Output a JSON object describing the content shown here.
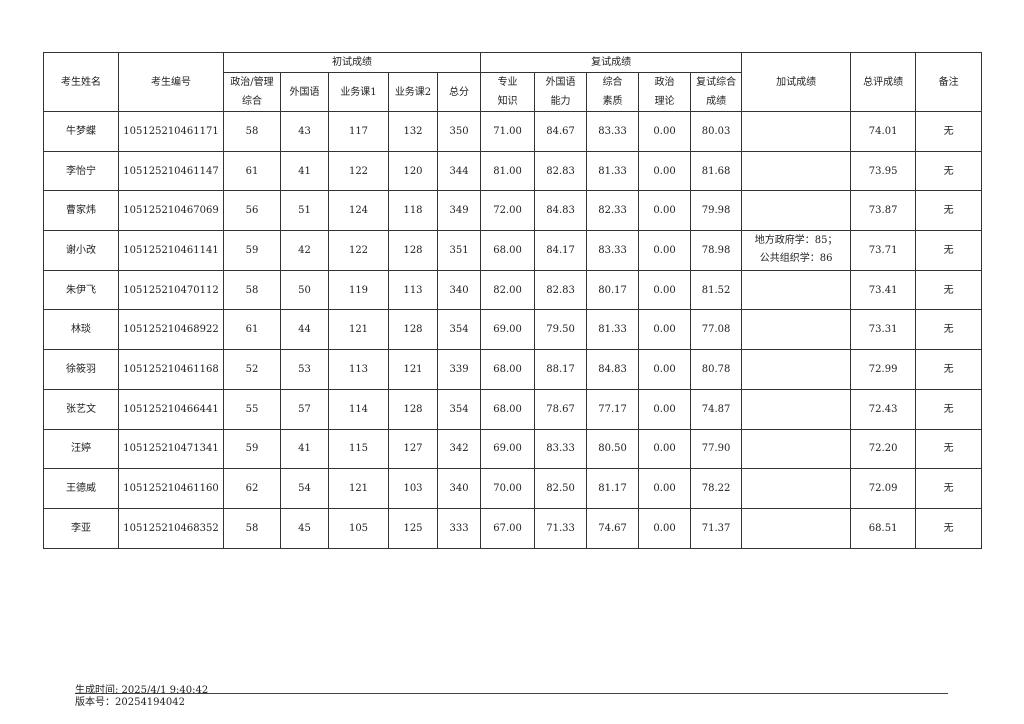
{
  "table": {
    "headers": {
      "name": "考生姓名",
      "id": "考生编号",
      "prelim_group": "初试成绩",
      "retest_group": "复试成绩",
      "prelim": [
        "政治/管理\n综合",
        "外国语",
        "业务课1",
        "业务课2",
        "总分"
      ],
      "retest": [
        "专业\n知识",
        "外国语\n能力",
        "综合\n素质",
        "政治\n理论",
        "复试综合\n成绩"
      ],
      "extra": "加试成绩",
      "total": "总评成绩",
      "note": "备注"
    },
    "rows": [
      [
        "牛梦蝶",
        "105125210461171",
        "58",
        "43",
        "117",
        "132",
        "350",
        "71.00",
        "84.67",
        "83.33",
        "0.00",
        "80.03",
        "",
        "74.01",
        "无"
      ],
      [
        "李怡宁",
        "105125210461147",
        "61",
        "41",
        "122",
        "120",
        "344",
        "81.00",
        "82.83",
        "81.33",
        "0.00",
        "81.68",
        "",
        "73.95",
        "无"
      ],
      [
        "曹家炜",
        "105125210467069",
        "56",
        "51",
        "124",
        "118",
        "349",
        "72.00",
        "84.83",
        "82.33",
        "0.00",
        "79.98",
        "",
        "73.87",
        "无"
      ],
      [
        "谢小改",
        "105125210461141",
        "59",
        "42",
        "122",
        "128",
        "351",
        "68.00",
        "84.17",
        "83.33",
        "0.00",
        "78.98",
        "地方政府学：85；\n公共组织学：86",
        "73.71",
        "无"
      ],
      [
        "朱伊飞",
        "105125210470112",
        "58",
        "50",
        "119",
        "113",
        "340",
        "82.00",
        "82.83",
        "80.17",
        "0.00",
        "81.52",
        "",
        "73.41",
        "无"
      ],
      [
        "林琰",
        "105125210468922",
        "61",
        "44",
        "121",
        "128",
        "354",
        "69.00",
        "79.50",
        "81.33",
        "0.00",
        "77.08",
        "",
        "73.31",
        "无"
      ],
      [
        "徐筱羽",
        "105125210461168",
        "52",
        "53",
        "113",
        "121",
        "339",
        "68.00",
        "88.17",
        "84.83",
        "0.00",
        "80.78",
        "",
        "72.99",
        "无"
      ],
      [
        "张艺文",
        "105125210466441",
        "55",
        "57",
        "114",
        "128",
        "354",
        "68.00",
        "78.67",
        "77.17",
        "0.00",
        "74.87",
        "",
        "72.43",
        "无"
      ],
      [
        "汪婷",
        "105125210471341",
        "59",
        "41",
        "115",
        "127",
        "342",
        "69.00",
        "83.33",
        "80.50",
        "0.00",
        "77.90",
        "",
        "72.20",
        "无"
      ],
      [
        "王德威",
        "105125210461160",
        "62",
        "54",
        "121",
        "103",
        "340",
        "70.00",
        "82.50",
        "81.17",
        "0.00",
        "78.22",
        "",
        "72.09",
        "无"
      ],
      [
        "李亚",
        "105125210468352",
        "58",
        "45",
        "105",
        "125",
        "333",
        "67.00",
        "71.33",
        "74.67",
        "0.00",
        "71.37",
        "",
        "68.51",
        "无"
      ]
    ]
  },
  "footer": {
    "generated": "生成时间: 2025/4/1 9:40:42",
    "version": "版本号：20254194042"
  }
}
